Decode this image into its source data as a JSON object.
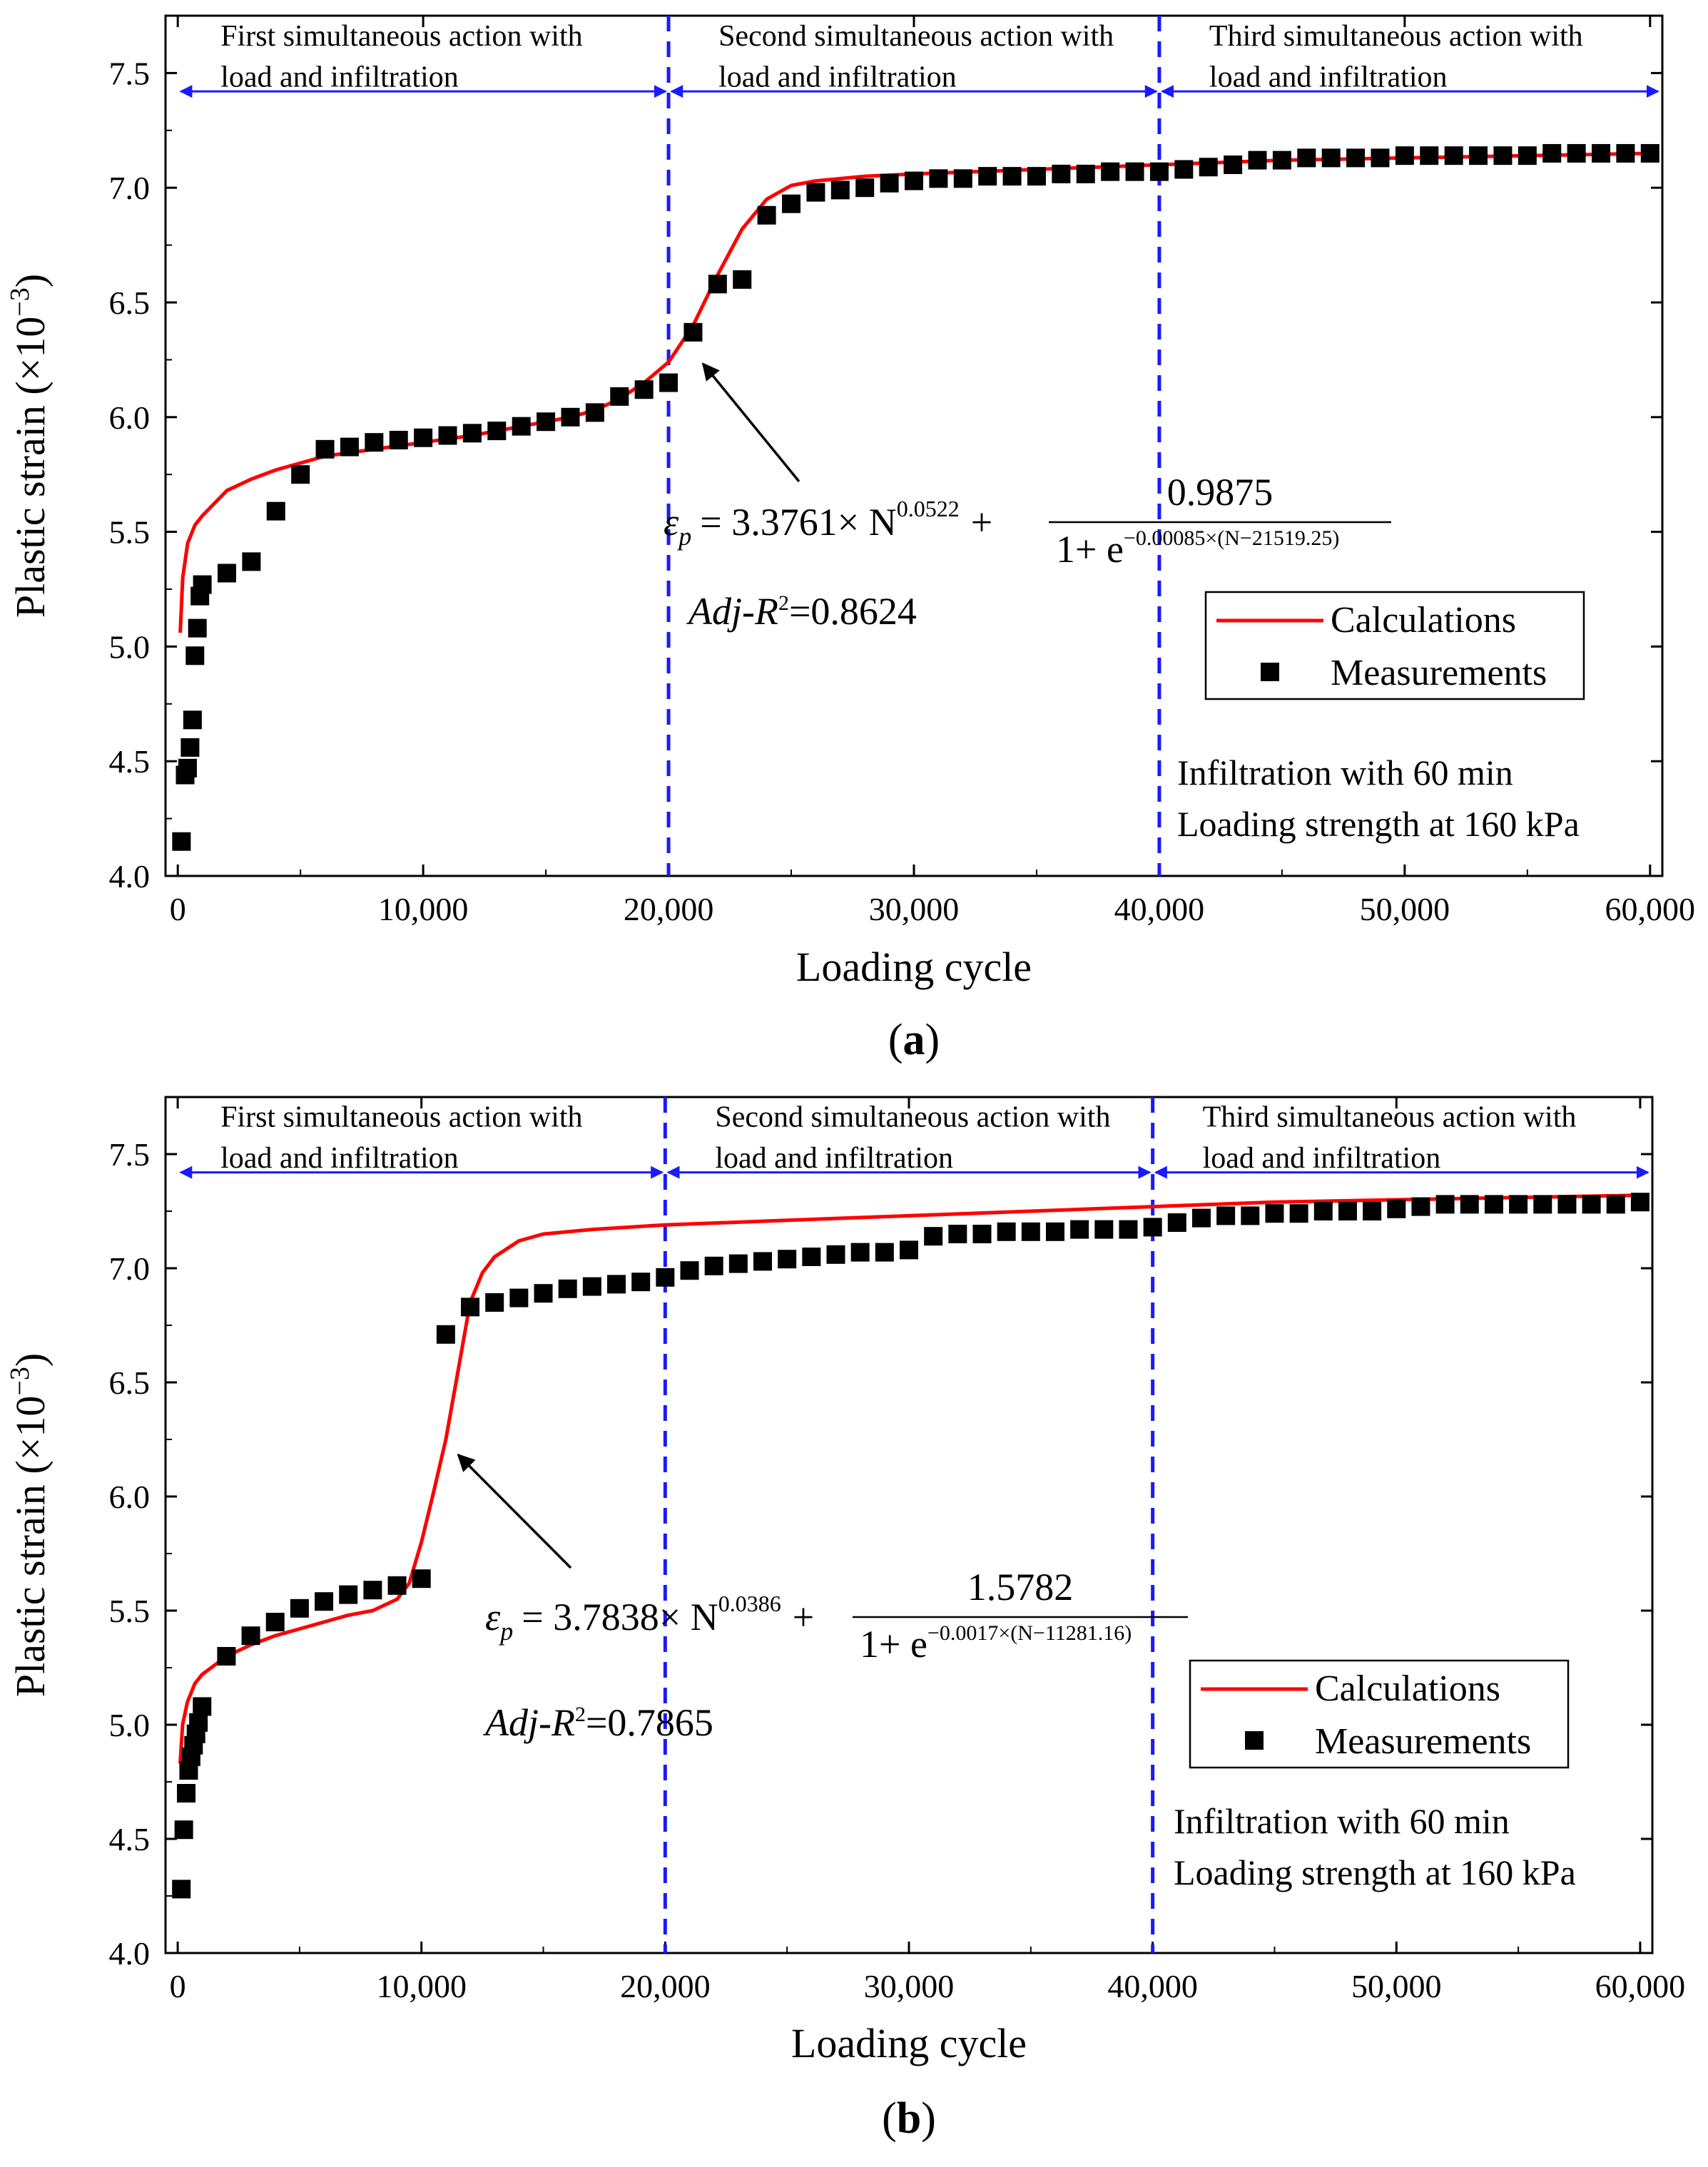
{
  "chart_data": [
    {
      "type": "scatter+line",
      "panel_label": "a",
      "xlabel": "Loading cycle",
      "ylabel": "Plastic strain (×10",
      "ylabel_exp": "−3",
      "ylabel_close": ")",
      "xlim": [
        -500,
        60500
      ],
      "ylim": [
        4.0,
        7.75
      ],
      "xticks": [
        0,
        10000,
        20000,
        30000,
        40000,
        50000,
        60000
      ],
      "xtick_labels": [
        "0",
        "10,000",
        "20,000",
        "30,000",
        "40,000",
        "50,000",
        "60,000"
      ],
      "yticks": [
        4.0,
        4.5,
        5.0,
        5.5,
        6.0,
        6.5,
        7.0,
        7.5
      ],
      "ytick_labels": [
        "4.0",
        "4.5",
        "5.0",
        "5.5",
        "6.0",
        "6.5",
        "7.0",
        "7.5"
      ],
      "phases": [
        {
          "line1": "First simultaneous action with",
          "line2": "load and infiltration",
          "x0": 0,
          "x1": 20000
        },
        {
          "line1": "Second simultaneous action with",
          "line2": "load and infiltration",
          "x0": 20000,
          "x1": 40000
        },
        {
          "line1": "Third simultaneous action with",
          "line2": "load and infiltration",
          "x0": 40000,
          "x1": 60500
        }
      ],
      "phase_arrow_y": 7.42,
      "phase_label_y": [
        7.62,
        7.44
      ],
      "vlines": [
        20000,
        40000
      ],
      "legend": {
        "line": "Calculations",
        "marker": "Measurements",
        "placement": "right"
      },
      "condition_lines": [
        "Infiltration with 60 min",
        "Loading strength at 160 kPa"
      ],
      "equation": {
        "lhs": "ε",
        "lhs_sub": "p",
        "coef": "= 3.3761× N",
        "exp": "0.0522",
        "plus": "+",
        "numerator": "0.9875",
        "denominator": "1+ e",
        "denominator_exp": "−0.00085×(N−21519.25)"
      },
      "adj_r2": {
        "label": "Adj-R",
        "sup": "2",
        "value": "=0.8624"
      },
      "annotation_arrow_to": [
        21000,
        6.27
      ],
      "series": [
        {
          "name": "Calculations",
          "kind": "line",
          "color": "#ff0000",
          "x": [
            100,
            200,
            400,
            700,
            1000,
            2000,
            3000,
            4000,
            5000,
            6000,
            8000,
            10000,
            12000,
            14000,
            16000,
            17000,
            18000,
            19000,
            20000,
            21000,
            22000,
            23000,
            24000,
            25000,
            26000,
            28000,
            30000,
            35000,
            40000,
            45000,
            50000,
            55000,
            60000
          ],
          "y": [
            5.06,
            5.3,
            5.45,
            5.53,
            5.57,
            5.68,
            5.73,
            5.77,
            5.8,
            5.83,
            5.86,
            5.89,
            5.92,
            5.96,
            6.0,
            6.03,
            6.08,
            6.15,
            6.24,
            6.4,
            6.62,
            6.82,
            6.95,
            7.01,
            7.03,
            7.05,
            7.06,
            7.08,
            7.1,
            7.12,
            7.13,
            7.14,
            7.15
          ]
        },
        {
          "name": "Measurements",
          "kind": "scatter",
          "color": "#000000",
          "x": [
            150,
            300,
            400,
            500,
            600,
            700,
            800,
            900,
            1000,
            2000,
            3000,
            4000,
            5000,
            6000,
            7000,
            8000,
            9000,
            10000,
            11000,
            12000,
            13000,
            14000,
            15000,
            16000,
            17000,
            18000,
            19000,
            20000,
            21000,
            22000,
            23000,
            24000,
            25000,
            26000,
            27000,
            28000,
            29000,
            30000,
            31000,
            32000,
            33000,
            34000,
            35000,
            36000,
            37000,
            38000,
            39000,
            40000,
            41000,
            42000,
            43000,
            44000,
            45000,
            46000,
            47000,
            48000,
            49000,
            50000,
            51000,
            52000,
            53000,
            54000,
            55000,
            56000,
            57000,
            58000,
            59000,
            60000
          ],
          "y": [
            4.15,
            4.44,
            4.47,
            4.56,
            4.68,
            4.96,
            5.08,
            5.22,
            5.27,
            5.32,
            5.37,
            5.59,
            5.75,
            5.86,
            5.87,
            5.89,
            5.9,
            5.91,
            5.92,
            5.93,
            5.94,
            5.96,
            5.98,
            6.0,
            6.02,
            6.09,
            6.12,
            6.15,
            6.37,
            6.58,
            6.6,
            6.88,
            6.93,
            6.98,
            6.99,
            7.0,
            7.02,
            7.03,
            7.04,
            7.04,
            7.05,
            7.05,
            7.05,
            7.06,
            7.06,
            7.07,
            7.07,
            7.07,
            7.08,
            7.09,
            7.1,
            7.12,
            7.12,
            7.13,
            7.13,
            7.13,
            7.13,
            7.14,
            7.14,
            7.14,
            7.14,
            7.14,
            7.14,
            7.15,
            7.15,
            7.15,
            7.15,
            7.15
          ]
        }
      ]
    },
    {
      "type": "scatter+line",
      "panel_label": "b",
      "xlabel": "Loading cycle",
      "ylabel": "Plastic strain (×10",
      "ylabel_exp": "−3",
      "ylabel_close": ")",
      "xlim": [
        -500,
        60500
      ],
      "ylim": [
        4.0,
        7.75
      ],
      "xticks": [
        0,
        10000,
        20000,
        30000,
        40000,
        50000,
        60000
      ],
      "xtick_labels": [
        "0",
        "10,000",
        "20,000",
        "30,000",
        "40,000",
        "50,000",
        "60,000"
      ],
      "yticks": [
        4.0,
        4.5,
        5.0,
        5.5,
        6.0,
        6.5,
        7.0,
        7.5
      ],
      "ytick_labels": [
        "4.0",
        "4.5",
        "5.0",
        "5.5",
        "6.0",
        "6.5",
        "7.0",
        "7.5"
      ],
      "phases": [
        {
          "line1": "First simultaneous action with",
          "line2": "load and infiltration",
          "x0": 0,
          "x1": 20000
        },
        {
          "line1": "Second simultaneous action with",
          "line2": "load and infiltration",
          "x0": 20000,
          "x1": 40000
        },
        {
          "line1": "Third simultaneous action with",
          "line2": "load and infiltration",
          "x0": 40000,
          "x1": 60500
        }
      ],
      "phase_arrow_y": 7.42,
      "phase_label_y": [
        7.62,
        7.44
      ],
      "vlines": [
        20000,
        40000
      ],
      "legend": {
        "line": "Calculations",
        "marker": "Measurements",
        "placement": "right"
      },
      "condition_lines": [
        "Infiltration with 60 min",
        "Loading strength at 160 kPa"
      ],
      "equation": {
        "lhs": "ε",
        "lhs_sub": "p",
        "coef": "= 3.7838× N",
        "exp": "0.0386",
        "plus": "+",
        "numerator": "1.5782",
        "denominator": "1+ e",
        "denominator_exp": "−0.0017×(N−11281.16)"
      },
      "adj_r2": {
        "label": "Adj-R",
        "sup": "2",
        "value": "=0.7865"
      },
      "annotation_arrow_to": [
        11100,
        6.22
      ],
      "series": [
        {
          "name": "Calculations",
          "kind": "line",
          "color": "#ff0000",
          "x": [
            100,
            200,
            400,
            700,
            1000,
            2000,
            3000,
            4000,
            5000,
            6000,
            7000,
            8000,
            9000,
            9500,
            10000,
            10500,
            11000,
            11500,
            12000,
            12500,
            13000,
            14000,
            15000,
            17000,
            20000,
            25000,
            30000,
            35000,
            40000,
            45000,
            50000,
            55000,
            60000
          ],
          "y": [
            4.83,
            5.0,
            5.1,
            5.18,
            5.22,
            5.3,
            5.35,
            5.39,
            5.42,
            5.45,
            5.48,
            5.5,
            5.55,
            5.62,
            5.8,
            6.02,
            6.25,
            6.55,
            6.85,
            6.98,
            7.05,
            7.12,
            7.15,
            7.17,
            7.19,
            7.21,
            7.23,
            7.25,
            7.27,
            7.29,
            7.3,
            7.31,
            7.32
          ]
        },
        {
          "name": "Measurements",
          "kind": "scatter",
          "color": "#000000",
          "x": [
            150,
            250,
            350,
            450,
            550,
            650,
            750,
            850,
            1000,
            2000,
            3000,
            4000,
            5000,
            6000,
            7000,
            8000,
            9000,
            10000,
            11000,
            12000,
            13000,
            14000,
            15000,
            16000,
            17000,
            18000,
            19000,
            20000,
            21000,
            22000,
            23000,
            24000,
            25000,
            26000,
            27000,
            28000,
            29000,
            30000,
            31000,
            32000,
            33000,
            34000,
            35000,
            36000,
            37000,
            38000,
            39000,
            40000,
            41000,
            42000,
            43000,
            44000,
            45000,
            46000,
            47000,
            48000,
            49000,
            50000,
            51000,
            52000,
            53000,
            54000,
            55000,
            56000,
            57000,
            58000,
            59000,
            60000
          ],
          "y": [
            4.28,
            4.54,
            4.7,
            4.8,
            4.86,
            4.91,
            4.96,
            5.01,
            5.08,
            5.3,
            5.39,
            5.45,
            5.51,
            5.54,
            5.57,
            5.59,
            5.61,
            5.64,
            6.71,
            6.83,
            6.85,
            6.87,
            6.89,
            6.91,
            6.92,
            6.93,
            6.94,
            6.96,
            6.99,
            7.01,
            7.02,
            7.03,
            7.04,
            7.05,
            7.06,
            7.07,
            7.07,
            7.08,
            7.14,
            7.15,
            7.15,
            7.16,
            7.16,
            7.16,
            7.17,
            7.17,
            7.17,
            7.18,
            7.2,
            7.22,
            7.23,
            7.23,
            7.24,
            7.24,
            7.25,
            7.25,
            7.25,
            7.26,
            7.27,
            7.28,
            7.28,
            7.28,
            7.28,
            7.28,
            7.28,
            7.28,
            7.28,
            7.29
          ]
        }
      ]
    }
  ]
}
